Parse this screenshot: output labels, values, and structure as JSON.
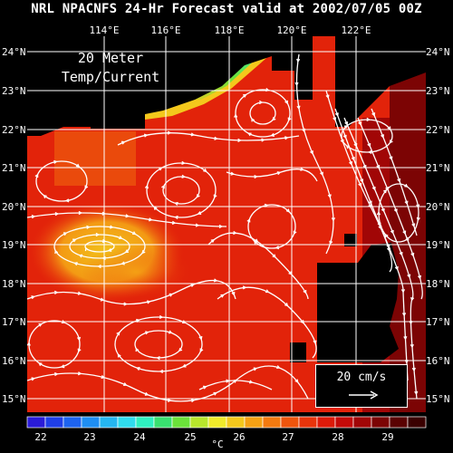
{
  "title": "NRL NPACNFS 24-Hr Forecast valid at 2002/07/05 00Z",
  "inset": {
    "line1": "20 Meter",
    "line2": "Temp/Current"
  },
  "reference": {
    "label": "20 cm/s"
  },
  "longitudes": [
    "114°E",
    "116°E",
    "118°E",
    "120°E",
    "122°E"
  ],
  "latitudes": [
    "24°N",
    "23°N",
    "22°N",
    "21°N",
    "20°N",
    "19°N",
    "18°N",
    "17°N",
    "16°N",
    "15°N"
  ],
  "colorbar": {
    "unit": "°C",
    "tick_labels": [
      "22",
      "23",
      "24",
      "25",
      "26",
      "27",
      "28",
      "29"
    ],
    "colors": [
      "#2a1bd8",
      "#1f3ee8",
      "#1d63ef",
      "#1f8ef2",
      "#25b6f0",
      "#30dcee",
      "#2ff0c0",
      "#39e070",
      "#6be23a",
      "#b8e62c",
      "#f0ea2a",
      "#f4c81c",
      "#f5a114",
      "#f37a10",
      "#ef550d",
      "#e8340b",
      "#dd1a09",
      "#c40a08",
      "#a10606",
      "#7c0404",
      "#5a0202",
      "#3a0000"
    ]
  },
  "colors": {
    "background": "#000000",
    "land": "#000000",
    "warm_sea": "#e5290c",
    "cool_patch": "#f5a114",
    "coastal_front": "#39e070"
  }
}
